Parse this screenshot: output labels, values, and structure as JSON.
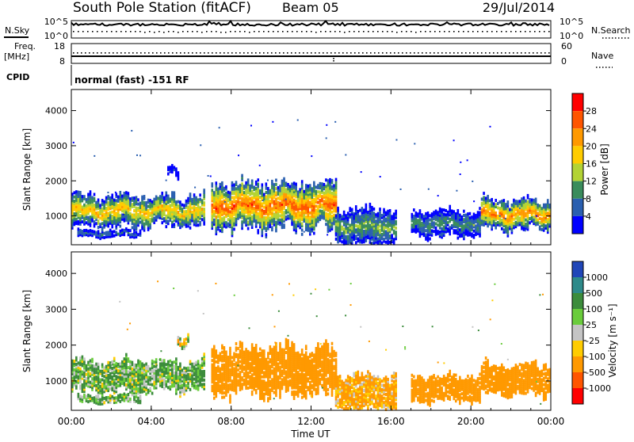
{
  "header": {
    "title": "South Pole Station (fitACF)",
    "beam": "Beam 05",
    "date": "29/Jul/2014"
  },
  "top_panels": {
    "nsky_label": "N.Sky",
    "nsearch_label": "N.Search",
    "nsky_ticks": [
      "10^5",
      "10^0"
    ],
    "nsearch_ticks": [
      "10^5",
      "10^0"
    ],
    "freq_label": "Freq.",
    "freq_unit": "[MHz]",
    "freq_ticks": [
      "18",
      "8"
    ],
    "nave_label": "Nave",
    "nave_ticks": [
      "60",
      "0"
    ],
    "cpid_label": "CPID",
    "cpid_text": "normal (fast) -151 RF"
  },
  "axes": {
    "ylabel": "Slant Range [km]",
    "yticks": [
      "4000",
      "3000",
      "2000",
      "1000"
    ],
    "xticks": [
      "00:00",
      "04:00",
      "08:00",
      "12:00",
      "16:00",
      "20:00",
      "00:00"
    ],
    "xlabel": "Time UT"
  },
  "colorbars": {
    "power": {
      "label": "Power [dB]",
      "ticks": [
        "28",
        "24",
        "20",
        "16",
        "12",
        "8",
        "4"
      ],
      "colors": [
        "#ff0000",
        "#ff5500",
        "#ff9900",
        "#ffcc00",
        "#b3d335",
        "#3a8c5c",
        "#2a5fb0",
        "#0000ff"
      ]
    },
    "velocity": {
      "label": "Velocity [m s⁻¹]",
      "ticks": [
        "1000",
        "500",
        "100",
        "25",
        "-25",
        "-100",
        "-500",
        "-1000"
      ],
      "colors": [
        "#2046b8",
        "#2e8a8a",
        "#3c8c3c",
        "#6acc3c",
        "#c4c4c4",
        "#ffcc00",
        "#ff9900",
        "#ff5500",
        "#ff0000"
      ]
    }
  },
  "chart_data": {
    "type": "heatmap",
    "title": "South Pole Station (fitACF)",
    "xlabel": "Time UT",
    "ylabel": "Slant Range [km]",
    "xlim": [
      0,
      24
    ],
    "ylim": [
      180,
      4600
    ],
    "x_ticks_hours": [
      0,
      4,
      8,
      12,
      16,
      20,
      24
    ],
    "y_ticks_km": [
      1000,
      2000,
      3000,
      4000
    ],
    "power_scatter_bands": [
      {
        "t0": 0.0,
        "t1": 6.6,
        "r_center": 1150,
        "r_half_width": 420,
        "peak_db": 22
      },
      {
        "t0": 0.3,
        "t1": 3.5,
        "r_center": 500,
        "r_half_width": 90,
        "peak_db": 10
      },
      {
        "t0": 4.8,
        "t1": 5.3,
        "r_center": 2250,
        "r_half_width": 100,
        "peak_db": 4
      },
      {
        "t0": 7.0,
        "t1": 13.2,
        "r_center": 1300,
        "r_half_width": 650,
        "peak_db": 28
      },
      {
        "t0": 13.2,
        "t1": 16.2,
        "r_center": 700,
        "r_half_width": 500,
        "peak_db": 14
      },
      {
        "t0": 17.0,
        "t1": 20.5,
        "r_center": 800,
        "r_half_width": 350,
        "peak_db": 12
      },
      {
        "t0": 20.5,
        "t1": 24.0,
        "r_center": 1050,
        "r_half_width": 420,
        "peak_db": 26
      }
    ],
    "velocity_scatter_bands": [
      {
        "t0": 0.0,
        "t1": 6.6,
        "r_center": 1150,
        "r_half_width": 420,
        "velocity": 100
      },
      {
        "t0": 0.3,
        "t1": 3.5,
        "r_center": 500,
        "r_half_width": 90,
        "velocity": 100
      },
      {
        "t0": 5.3,
        "t1": 5.8,
        "r_center": 2280,
        "r_half_width": 120,
        "velocity": 0
      },
      {
        "t0": 7.0,
        "t1": 13.2,
        "r_center": 1300,
        "r_half_width": 650,
        "velocity": -300
      },
      {
        "t0": 13.2,
        "t1": 16.2,
        "r_center": 700,
        "r_half_width": 500,
        "velocity": -150
      },
      {
        "t0": 17.0,
        "t1": 20.5,
        "r_center": 800,
        "r_half_width": 350,
        "velocity": -300
      },
      {
        "t0": 20.5,
        "t1": 24.0,
        "r_center": 1050,
        "r_half_width": 420,
        "velocity": -300
      }
    ],
    "frequency_mhz": 12.0,
    "nave_nominal": 30
  }
}
